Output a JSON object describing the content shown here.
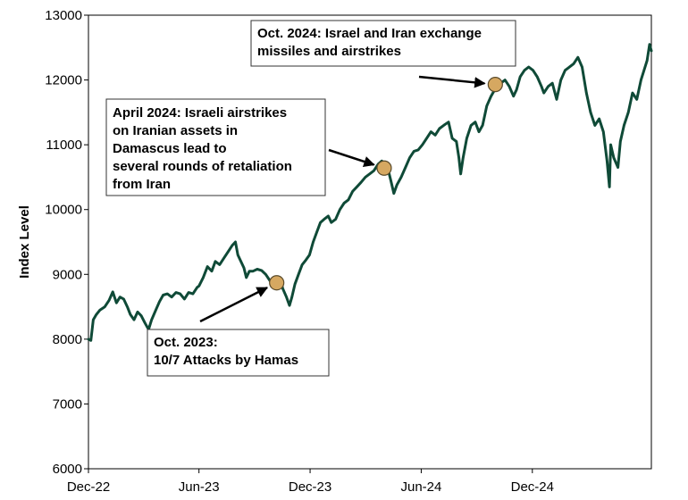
{
  "chart_data": {
    "type": "line",
    "title": "",
    "xlabel": "",
    "ylabel": "Index Level",
    "ylim": [
      6000,
      13000
    ],
    "xlim": [
      "2022-12-01",
      "2025-06-15"
    ],
    "y_ticks": [
      6000,
      7000,
      8000,
      9000,
      10000,
      11000,
      12000,
      13000
    ],
    "x_ticks": [
      {
        "date": "2022-12-01",
        "label": "Dec-22"
      },
      {
        "date": "2023-06-01",
        "label": "Jun-23"
      },
      {
        "date": "2023-12-01",
        "label": "Dec-23"
      },
      {
        "date": "2024-06-01",
        "label": "Jun-24"
      },
      {
        "date": "2024-12-01",
        "label": "Dec-24"
      }
    ],
    "grid": false,
    "series": [
      {
        "name": "",
        "color": "#0f4a37",
        "points": [
          [
            "2022-12-01",
            8000
          ],
          [
            "2022-12-05",
            7980
          ],
          [
            "2022-12-09",
            8300
          ],
          [
            "2022-12-14",
            8380
          ],
          [
            "2022-12-20",
            8450
          ],
          [
            "2022-12-28",
            8500
          ],
          [
            "2023-01-04",
            8600
          ],
          [
            "2023-01-10",
            8730
          ],
          [
            "2023-01-16",
            8560
          ],
          [
            "2023-01-22",
            8650
          ],
          [
            "2023-01-28",
            8620
          ],
          [
            "2023-02-03",
            8500
          ],
          [
            "2023-02-08",
            8380
          ],
          [
            "2023-02-14",
            8300
          ],
          [
            "2023-02-20",
            8420
          ],
          [
            "2023-02-26",
            8360
          ],
          [
            "2023-03-04",
            8250
          ],
          [
            "2023-03-10",
            8150
          ],
          [
            "2023-03-15",
            8300
          ],
          [
            "2023-03-22",
            8450
          ],
          [
            "2023-03-28",
            8580
          ],
          [
            "2023-04-03",
            8680
          ],
          [
            "2023-04-10",
            8700
          ],
          [
            "2023-04-17",
            8650
          ],
          [
            "2023-04-24",
            8720
          ],
          [
            "2023-05-01",
            8700
          ],
          [
            "2023-05-08",
            8620
          ],
          [
            "2023-05-15",
            8720
          ],
          [
            "2023-05-22",
            8700
          ],
          [
            "2023-05-29",
            8800
          ],
          [
            "2023-06-01",
            8820
          ],
          [
            "2023-06-08",
            8950
          ],
          [
            "2023-06-15",
            9120
          ],
          [
            "2023-06-22",
            9050
          ],
          [
            "2023-06-28",
            9200
          ],
          [
            "2023-07-05",
            9150
          ],
          [
            "2023-07-12",
            9250
          ],
          [
            "2023-07-19",
            9350
          ],
          [
            "2023-07-26",
            9450
          ],
          [
            "2023-07-31",
            9500
          ],
          [
            "2023-08-04",
            9300
          ],
          [
            "2023-08-09",
            9200
          ],
          [
            "2023-08-14",
            9100
          ],
          [
            "2023-08-18",
            8950
          ],
          [
            "2023-08-23",
            9050
          ],
          [
            "2023-08-29",
            9050
          ],
          [
            "2023-09-05",
            9080
          ],
          [
            "2023-09-12",
            9060
          ],
          [
            "2023-09-19",
            9000
          ],
          [
            "2023-09-26",
            8900
          ],
          [
            "2023-10-03",
            8800
          ],
          [
            "2023-10-07",
            8870
          ],
          [
            "2023-10-12",
            8950
          ],
          [
            "2023-10-17",
            8780
          ],
          [
            "2023-10-23",
            8650
          ],
          [
            "2023-10-28",
            8520
          ],
          [
            "2023-11-01",
            8650
          ],
          [
            "2023-11-06",
            8850
          ],
          [
            "2023-11-12",
            9000
          ],
          [
            "2023-11-18",
            9150
          ],
          [
            "2023-11-24",
            9220
          ],
          [
            "2023-11-30",
            9300
          ],
          [
            "2023-12-06",
            9500
          ],
          [
            "2023-12-12",
            9650
          ],
          [
            "2023-12-18",
            9800
          ],
          [
            "2023-12-24",
            9850
          ],
          [
            "2023-12-31",
            9900
          ],
          [
            "2024-01-05",
            9800
          ],
          [
            "2024-01-12",
            9850
          ],
          [
            "2024-01-19",
            10000
          ],
          [
            "2024-01-26",
            10100
          ],
          [
            "2024-02-02",
            10150
          ],
          [
            "2024-02-09",
            10280
          ],
          [
            "2024-02-16",
            10350
          ],
          [
            "2024-02-23",
            10420
          ],
          [
            "2024-03-01",
            10500
          ],
          [
            "2024-03-08",
            10550
          ],
          [
            "2024-03-15",
            10600
          ],
          [
            "2024-03-22",
            10700
          ],
          [
            "2024-03-28",
            10750
          ],
          [
            "2024-04-02",
            10650
          ],
          [
            "2024-04-08",
            10600
          ],
          [
            "2024-04-12",
            10450
          ],
          [
            "2024-04-17",
            10250
          ],
          [
            "2024-04-22",
            10380
          ],
          [
            "2024-04-29",
            10500
          ],
          [
            "2024-05-06",
            10650
          ],
          [
            "2024-05-13",
            10800
          ],
          [
            "2024-05-20",
            10900
          ],
          [
            "2024-05-27",
            10920
          ],
          [
            "2024-06-03",
            11000
          ],
          [
            "2024-06-10",
            11100
          ],
          [
            "2024-06-17",
            11200
          ],
          [
            "2024-06-24",
            11150
          ],
          [
            "2024-07-01",
            11250
          ],
          [
            "2024-07-08",
            11300
          ],
          [
            "2024-07-16",
            11350
          ],
          [
            "2024-07-22",
            11100
          ],
          [
            "2024-07-29",
            11050
          ],
          [
            "2024-08-02",
            10800
          ],
          [
            "2024-08-05",
            10550
          ],
          [
            "2024-08-09",
            10800
          ],
          [
            "2024-08-15",
            11100
          ],
          [
            "2024-08-22",
            11300
          ],
          [
            "2024-08-29",
            11350
          ],
          [
            "2024-09-04",
            11200
          ],
          [
            "2024-09-10",
            11300
          ],
          [
            "2024-09-17",
            11600
          ],
          [
            "2024-09-24",
            11750
          ],
          [
            "2024-09-30",
            11850
          ],
          [
            "2024-10-04",
            11920
          ],
          [
            "2024-10-10",
            11950
          ],
          [
            "2024-10-17",
            12000
          ],
          [
            "2024-10-24",
            11900
          ],
          [
            "2024-10-31",
            11750
          ],
          [
            "2024-11-05",
            11850
          ],
          [
            "2024-11-11",
            12050
          ],
          [
            "2024-11-18",
            12150
          ],
          [
            "2024-11-25",
            12200
          ],
          [
            "2024-12-02",
            12150
          ],
          [
            "2024-12-09",
            12050
          ],
          [
            "2024-12-16",
            11900
          ],
          [
            "2024-12-20",
            11800
          ],
          [
            "2024-12-27",
            11900
          ],
          [
            "2025-01-03",
            11950
          ],
          [
            "2025-01-10",
            11700
          ],
          [
            "2025-01-17",
            12000
          ],
          [
            "2025-01-24",
            12150
          ],
          [
            "2025-01-31",
            12200
          ],
          [
            "2025-02-07",
            12250
          ],
          [
            "2025-02-14",
            12350
          ],
          [
            "2025-02-21",
            12200
          ],
          [
            "2025-02-28",
            11800
          ],
          [
            "2025-03-07",
            11500
          ],
          [
            "2025-03-14",
            11300
          ],
          [
            "2025-03-21",
            11400
          ],
          [
            "2025-03-28",
            11200
          ],
          [
            "2025-04-03",
            10750
          ],
          [
            "2025-04-07",
            10350
          ],
          [
            "2025-04-09",
            11000
          ],
          [
            "2025-04-14",
            10800
          ],
          [
            "2025-04-21",
            10650
          ],
          [
            "2025-04-25",
            11050
          ],
          [
            "2025-05-01",
            11300
          ],
          [
            "2025-05-08",
            11500
          ],
          [
            "2025-05-15",
            11800
          ],
          [
            "2025-05-22",
            11700
          ],
          [
            "2025-05-29",
            12000
          ],
          [
            "2025-06-03",
            12150
          ],
          [
            "2025-06-08",
            12300
          ],
          [
            "2025-06-12",
            12550
          ],
          [
            "2025-06-15",
            12450
          ]
        ]
      }
    ],
    "annotations": [
      {
        "id": "oct2023",
        "lines": [
          "Oct. 2023:",
          "10/7 Attacks by Hamas"
        ],
        "point": {
          "date": "2023-10-07",
          "value": 8870
        }
      },
      {
        "id": "apr2024",
        "lines": [
          "April 2024: Israeli airstrikes",
          "on Iranian assets in",
          "Damascus lead to",
          "several rounds of retaliation",
          "from Iran"
        ],
        "point": {
          "date": "2024-04-01",
          "value": 10640
        }
      },
      {
        "id": "oct2024",
        "lines": [
          "Oct. 2024: Israel and Iran exchange",
          "missiles and airstrikes"
        ],
        "point": {
          "date": "2024-10-01",
          "value": 11930
        }
      }
    ]
  }
}
